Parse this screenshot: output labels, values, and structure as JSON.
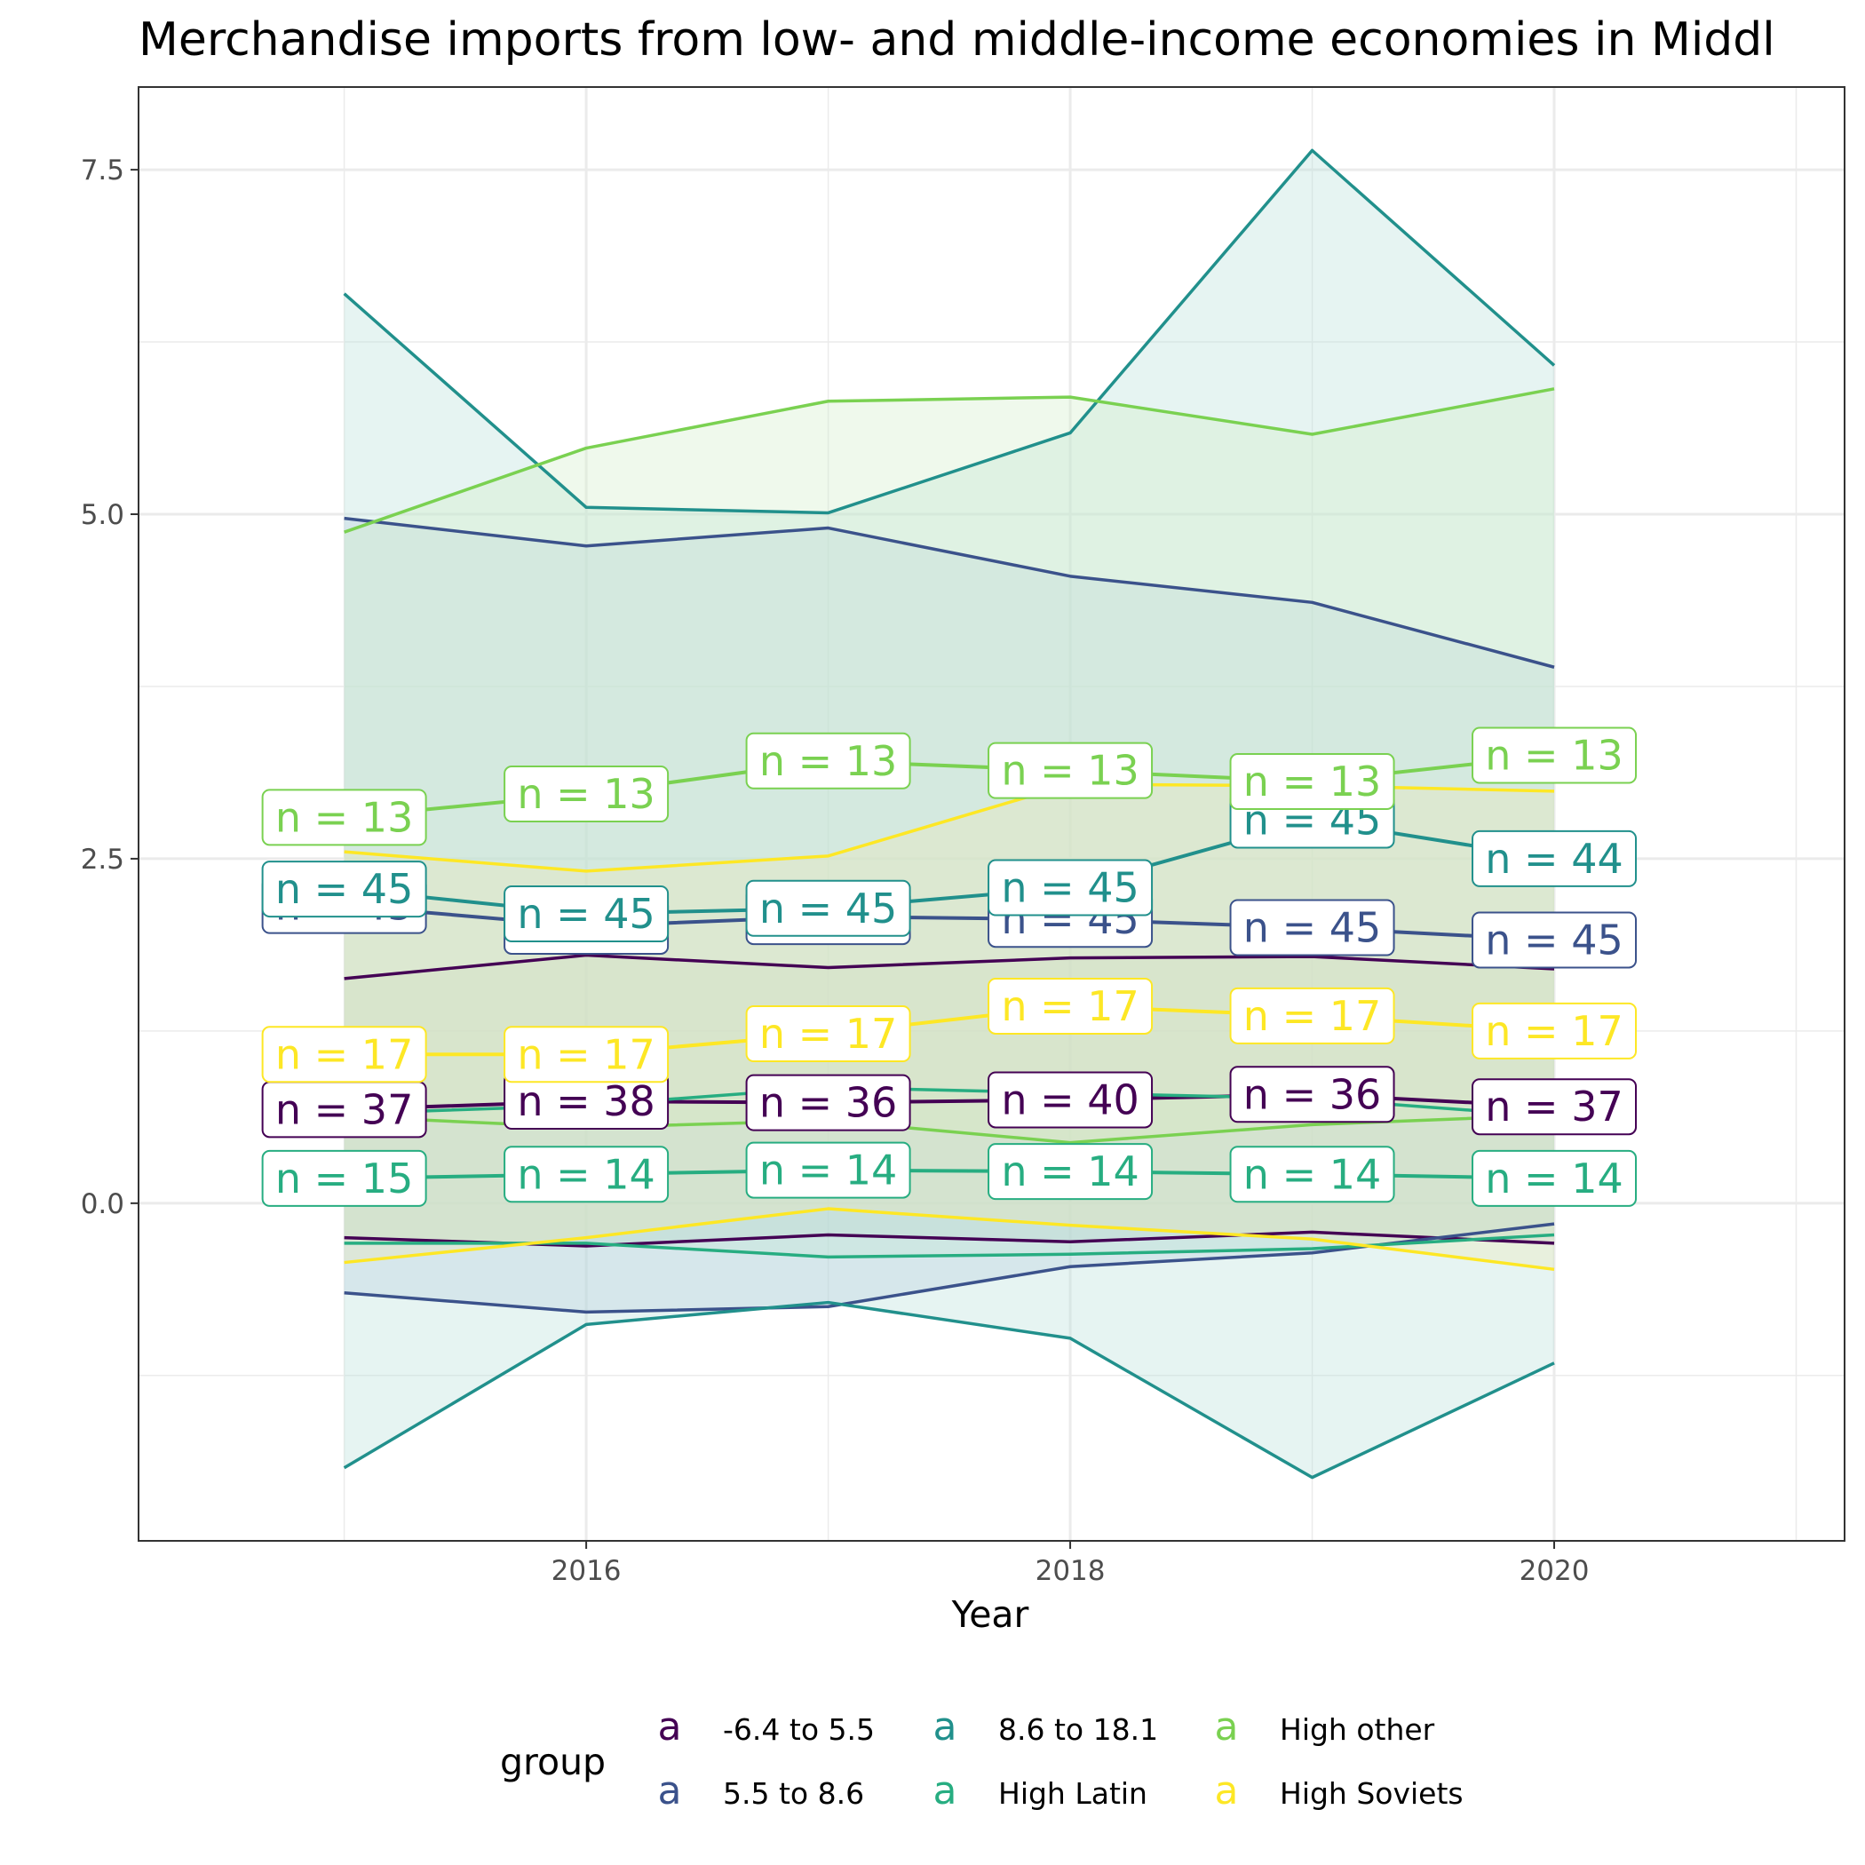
{
  "chart_data": {
    "type": "line",
    "title": "Merchandise imports from low- and middle-income economies in Middl",
    "xlabel": "Year",
    "ylabel": "",
    "x": [
      2015,
      2016,
      2017,
      2018,
      2019,
      2020
    ],
    "xlim": [
      2014.15,
      2021.2
    ],
    "ylim": [
      -2.45,
      8.1
    ],
    "x_ticks": [
      "2016",
      "2018",
      "2020"
    ],
    "x_tick_values": [
      2016,
      2018,
      2020
    ],
    "y_ticks": [
      "0.0",
      "2.5",
      "5.0",
      "7.5"
    ],
    "y_tick_values": [
      0,
      2.5,
      5.0,
      7.5
    ],
    "grid": true,
    "legend": {
      "title": "group",
      "placement": "bottom",
      "key_glyph": "a"
    },
    "series": [
      {
        "name": "-6.4 to 5.5",
        "color": "#440154",
        "band_fill": "#c4b8bc",
        "mean": [
          0.68,
          0.74,
          0.73,
          0.75,
          0.79,
          0.7
        ],
        "upper": [
          1.63,
          1.8,
          1.71,
          1.78,
          1.79,
          1.7
        ],
        "lower": [
          -0.25,
          -0.31,
          -0.23,
          -0.28,
          -0.21,
          -0.29
        ],
        "n": [
          "n = 37",
          "n = 38",
          "n = 36",
          "n = 40",
          "n = 36",
          "n = 37"
        ]
      },
      {
        "name": "5.5 to 8.6",
        "color": "#3b528b",
        "band_fill": "#b8c8e0",
        "mean": [
          2.16,
          2.01,
          2.08,
          2.06,
          2.0,
          1.91
        ],
        "upper": [
          4.97,
          4.77,
          4.9,
          4.55,
          4.36,
          3.89
        ],
        "lower": [
          -0.65,
          -0.79,
          -0.75,
          -0.46,
          -0.36,
          -0.15
        ],
        "n": [
          "n = 45",
          "n = 45",
          "n = 45",
          "n = 45",
          "n = 45",
          "n = 45"
        ]
      },
      {
        "name": "8.6 to 18.1",
        "color": "#21908c",
        "band_fill": "#b6e0da",
        "mean": [
          2.28,
          2.1,
          2.14,
          2.29,
          2.78,
          2.5
        ],
        "upper": [
          6.6,
          5.05,
          5.01,
          5.59,
          7.64,
          6.08
        ],
        "lower": [
          -1.92,
          -0.88,
          -0.72,
          -0.98,
          -1.99,
          -1.16
        ],
        "n": [
          "n = 45",
          "n = 45",
          "n = 45",
          "n = 45",
          "n = 45",
          "n = 44"
        ]
      },
      {
        "name": "High Latin",
        "color": "#27ad81",
        "band_fill": "#c0e8d4",
        "mean": [
          0.18,
          0.21,
          0.24,
          0.23,
          0.21,
          0.18
        ],
        "upper": [
          0.65,
          0.71,
          0.84,
          0.8,
          0.76,
          0.63
        ],
        "lower": [
          -0.29,
          -0.29,
          -0.39,
          -0.37,
          -0.33,
          -0.23
        ],
        "n": [
          "n = 15",
          "n = 14",
          "n = 14",
          "n = 14",
          "n = 14",
          "n = 14"
        ]
      },
      {
        "name": "High other",
        "color": "#7ad151",
        "band_fill": "#d2edc8",
        "mean": [
          2.8,
          2.97,
          3.21,
          3.14,
          3.06,
          3.25
        ],
        "upper": [
          4.87,
          5.48,
          5.82,
          5.85,
          5.58,
          5.91
        ],
        "lower": [
          0.63,
          0.55,
          0.6,
          0.44,
          0.57,
          0.64
        ],
        "n": [
          "n = 13",
          "n = 13",
          "n = 13",
          "n = 13",
          "n = 13",
          "n = 13"
        ]
      },
      {
        "name": "High Soviets",
        "color": "#fde725",
        "band_fill": "#ece8b8",
        "mean": [
          1.08,
          1.08,
          1.23,
          1.43,
          1.36,
          1.25
        ],
        "upper": [
          2.55,
          2.41,
          2.52,
          3.04,
          3.03,
          2.99
        ],
        "lower": [
          -0.43,
          -0.25,
          -0.04,
          -0.16,
          -0.26,
          -0.48
        ],
        "n": [
          "n = 17",
          "n = 17",
          "n = 17",
          "n = 17",
          "n = 17",
          "n = 17"
        ]
      }
    ]
  }
}
